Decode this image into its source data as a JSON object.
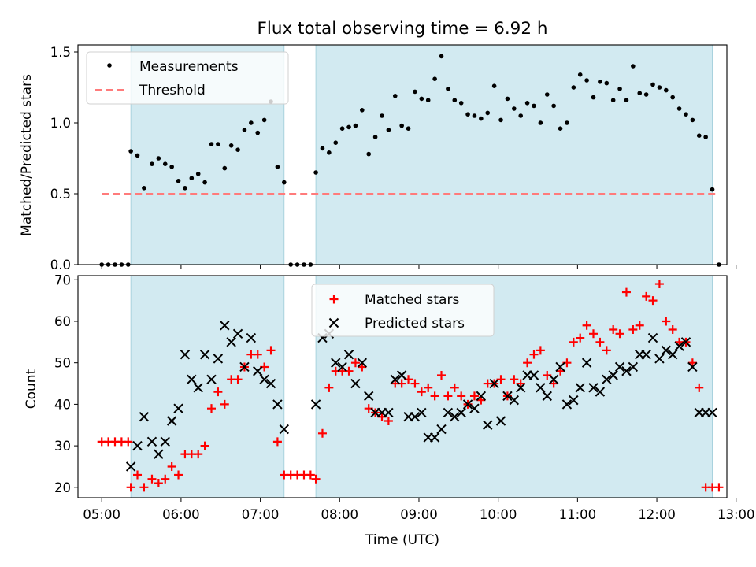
{
  "title": "Flux total observing time = 6.92 h",
  "colors": {
    "measurement": "#000000",
    "threshold": "#ff7b7b",
    "matched": "#ff0000",
    "predicted": "#000000",
    "shade": "#add8e6"
  },
  "chart_data": [
    {
      "type": "scatter",
      "panel": "top",
      "ylabel": "Matched/Predicted stars",
      "ylim": [
        0,
        1.55
      ],
      "yticks": [
        "0.0",
        "0.5",
        "1.0",
        "1.5"
      ],
      "xlim": [
        "04:42",
        "12:53"
      ],
      "observing_windows": [
        [
          "05:22",
          "07:18"
        ],
        [
          "07:42",
          "12:42"
        ]
      ],
      "legend": {
        "placement": "upper-left",
        "entries": [
          "Measurements",
          "Threshold"
        ]
      },
      "threshold": {
        "name": "Threshold",
        "value": 0.5,
        "x_range": [
          "05:00",
          "12:47"
        ]
      },
      "series": [
        {
          "name": "Measurements",
          "x": [
            "05:00",
            "05:05",
            "05:10",
            "05:15",
            "05:20",
            "05:22",
            "05:27",
            "05:32",
            "05:38",
            "05:43",
            "05:48",
            "05:53",
            "05:58",
            "06:03",
            "06:08",
            "06:13",
            "06:18",
            "06:23",
            "06:28",
            "06:33",
            "06:38",
            "06:43",
            "06:48",
            "06:53",
            "06:58",
            "07:03",
            "07:08",
            "07:13",
            "07:18",
            "07:23",
            "07:28",
            "07:33",
            "07:38",
            "07:42",
            "07:47",
            "07:52",
            "07:57",
            "08:02",
            "08:07",
            "08:12",
            "08:17",
            "08:22",
            "08:27",
            "08:32",
            "08:37",
            "08:42",
            "08:47",
            "08:52",
            "08:57",
            "09:02",
            "09:07",
            "09:12",
            "09:17",
            "09:22",
            "09:27",
            "09:32",
            "09:37",
            "09:42",
            "09:47",
            "09:52",
            "09:57",
            "10:02",
            "10:07",
            "10:12",
            "10:17",
            "10:22",
            "10:27",
            "10:32",
            "10:37",
            "10:42",
            "10:47",
            "10:52",
            "10:57",
            "11:02",
            "11:07",
            "11:12",
            "11:17",
            "11:22",
            "11:27",
            "11:32",
            "11:37",
            "11:42",
            "11:47",
            "11:52",
            "11:57",
            "12:02",
            "12:07",
            "12:12",
            "12:17",
            "12:22",
            "12:27",
            "12:32",
            "12:37",
            "12:42",
            "12:47"
          ],
          "y": [
            0,
            0,
            0,
            0,
            0,
            0.8,
            0.77,
            0.54,
            0.71,
            0.75,
            0.71,
            0.69,
            0.59,
            0.54,
            0.61,
            0.64,
            0.58,
            0.85,
            0.85,
            0.68,
            0.84,
            0.81,
            0.95,
            1.0,
            0.93,
            1.02,
            1.15,
            0.69,
            0.58,
            0,
            0,
            0,
            0,
            0.65,
            0.82,
            0.79,
            0.86,
            0.96,
            0.97,
            0.98,
            1.09,
            0.78,
            0.9,
            1.05,
            0.95,
            1.19,
            0.98,
            0.96,
            1.22,
            1.17,
            1.16,
            1.31,
            1.47,
            1.24,
            1.16,
            1.14,
            1.06,
            1.05,
            1.03,
            1.07,
            1.26,
            1.02,
            1.17,
            1.1,
            1.05,
            1.14,
            1.12,
            1.0,
            1.2,
            1.12,
            0.96,
            1.0,
            1.25,
            1.34,
            1.3,
            1.18,
            1.29,
            1.28,
            1.16,
            1.24,
            1.16,
            1.4,
            1.21,
            1.2,
            1.27,
            1.25,
            1.23,
            1.18,
            1.1,
            1.06,
            1.02,
            0.91,
            0.9,
            0.53,
            0.0
          ]
        }
      ]
    },
    {
      "type": "scatter",
      "panel": "bottom",
      "xlabel": "Time (UTC)",
      "ylabel": "Count",
      "ylim": [
        17.5,
        71
      ],
      "yticks": [
        20,
        30,
        40,
        50,
        60,
        70
      ],
      "xlim": [
        "04:42",
        "12:53"
      ],
      "xticks": [
        "05:00",
        "06:00",
        "07:00",
        "08:00",
        "09:00",
        "10:00",
        "11:00",
        "12:00",
        "13:00"
      ],
      "observing_windows": [
        [
          "05:22",
          "07:18"
        ],
        [
          "07:42",
          "12:42"
        ]
      ],
      "legend": {
        "placement": "upper-center",
        "entries": [
          "Matched stars",
          "Predicted stars"
        ]
      },
      "series": [
        {
          "name": "Matched stars",
          "marker": "+",
          "x": [
            "05:00",
            "05:05",
            "05:10",
            "05:15",
            "05:20",
            "05:22",
            "05:27",
            "05:32",
            "05:38",
            "05:43",
            "05:48",
            "05:53",
            "05:58",
            "06:03",
            "06:08",
            "06:13",
            "06:18",
            "06:23",
            "06:28",
            "06:33",
            "06:38",
            "06:43",
            "06:48",
            "06:53",
            "06:58",
            "07:03",
            "07:08",
            "07:13",
            "07:18",
            "07:23",
            "07:28",
            "07:33",
            "07:38",
            "07:42",
            "07:47",
            "07:52",
            "07:57",
            "08:02",
            "08:07",
            "08:12",
            "08:17",
            "08:22",
            "08:27",
            "08:32",
            "08:37",
            "08:42",
            "08:47",
            "08:52",
            "08:57",
            "09:02",
            "09:07",
            "09:12",
            "09:17",
            "09:22",
            "09:27",
            "09:32",
            "09:37",
            "09:42",
            "09:47",
            "09:52",
            "09:57",
            "10:02",
            "10:07",
            "10:12",
            "10:17",
            "10:22",
            "10:27",
            "10:32",
            "10:37",
            "10:42",
            "10:47",
            "10:52",
            "10:57",
            "11:02",
            "11:07",
            "11:12",
            "11:17",
            "11:22",
            "11:27",
            "11:32",
            "11:37",
            "11:42",
            "11:47",
            "11:52",
            "11:57",
            "12:02",
            "12:07",
            "12:12",
            "12:17",
            "12:22",
            "12:27",
            "12:32",
            "12:37",
            "12:42",
            "12:47"
          ],
          "y": [
            31,
            31,
            31,
            31,
            31,
            20,
            23,
            20,
            22,
            21,
            22,
            25,
            23,
            28,
            28,
            28,
            30,
            39,
            43,
            40,
            46,
            46,
            49,
            52,
            52,
            49,
            53,
            31,
            23,
            23,
            23,
            23,
            23,
            22,
            33,
            44,
            48,
            48,
            48,
            50,
            49,
            39,
            38,
            37,
            36,
            45,
            45,
            46,
            45,
            43,
            44,
            42,
            47,
            42,
            44,
            42,
            40,
            42,
            41,
            45,
            45,
            46,
            42,
            46,
            45,
            50,
            52,
            53,
            47,
            45,
            48,
            50,
            55,
            56,
            59,
            57,
            55,
            53,
            58,
            57,
            67,
            58,
            59,
            66,
            65,
            69,
            60,
            58,
            55,
            55,
            50,
            44,
            20,
            20,
            20
          ]
        },
        {
          "name": "Predicted stars",
          "marker": "x",
          "x": [
            "05:22",
            "05:27",
            "05:32",
            "05:38",
            "05:43",
            "05:48",
            "05:53",
            "05:58",
            "06:03",
            "06:08",
            "06:13",
            "06:18",
            "06:23",
            "06:28",
            "06:33",
            "06:38",
            "06:43",
            "06:48",
            "06:53",
            "06:58",
            "07:03",
            "07:08",
            "07:13",
            "07:18",
            "07:42",
            "07:47",
            "07:52",
            "07:57",
            "08:02",
            "08:07",
            "08:12",
            "08:17",
            "08:22",
            "08:27",
            "08:32",
            "08:37",
            "08:42",
            "08:47",
            "08:52",
            "08:57",
            "09:02",
            "09:07",
            "09:12",
            "09:17",
            "09:22",
            "09:27",
            "09:32",
            "09:37",
            "09:42",
            "09:47",
            "09:52",
            "09:57",
            "10:02",
            "10:07",
            "10:12",
            "10:17",
            "10:22",
            "10:27",
            "10:32",
            "10:37",
            "10:42",
            "10:47",
            "10:52",
            "10:57",
            "11:02",
            "11:07",
            "11:12",
            "11:17",
            "11:22",
            "11:27",
            "11:32",
            "11:37",
            "11:42",
            "11:47",
            "11:52",
            "11:57",
            "12:02",
            "12:07",
            "12:12",
            "12:17",
            "12:22",
            "12:27",
            "12:32",
            "12:37",
            "12:42"
          ],
          "y": [
            25,
            30,
            37,
            31,
            28,
            31,
            36,
            39,
            52,
            46,
            44,
            52,
            46,
            51,
            59,
            55,
            57,
            49,
            56,
            48,
            46,
            45,
            40,
            34,
            40,
            56,
            57,
            50,
            49,
            52,
            45,
            50,
            42,
            38,
            38,
            38,
            46,
            47,
            37,
            37,
            38,
            32,
            32,
            34,
            38,
            37,
            38,
            40,
            39,
            42,
            35,
            45,
            36,
            42,
            41,
            44,
            47,
            47,
            44,
            42,
            46,
            49,
            40,
            41,
            44,
            50,
            44,
            43,
            46,
            47,
            49,
            48,
            49,
            52,
            52,
            56,
            51,
            53,
            52,
            54,
            55,
            49,
            38,
            38,
            38
          ]
        }
      ]
    }
  ]
}
